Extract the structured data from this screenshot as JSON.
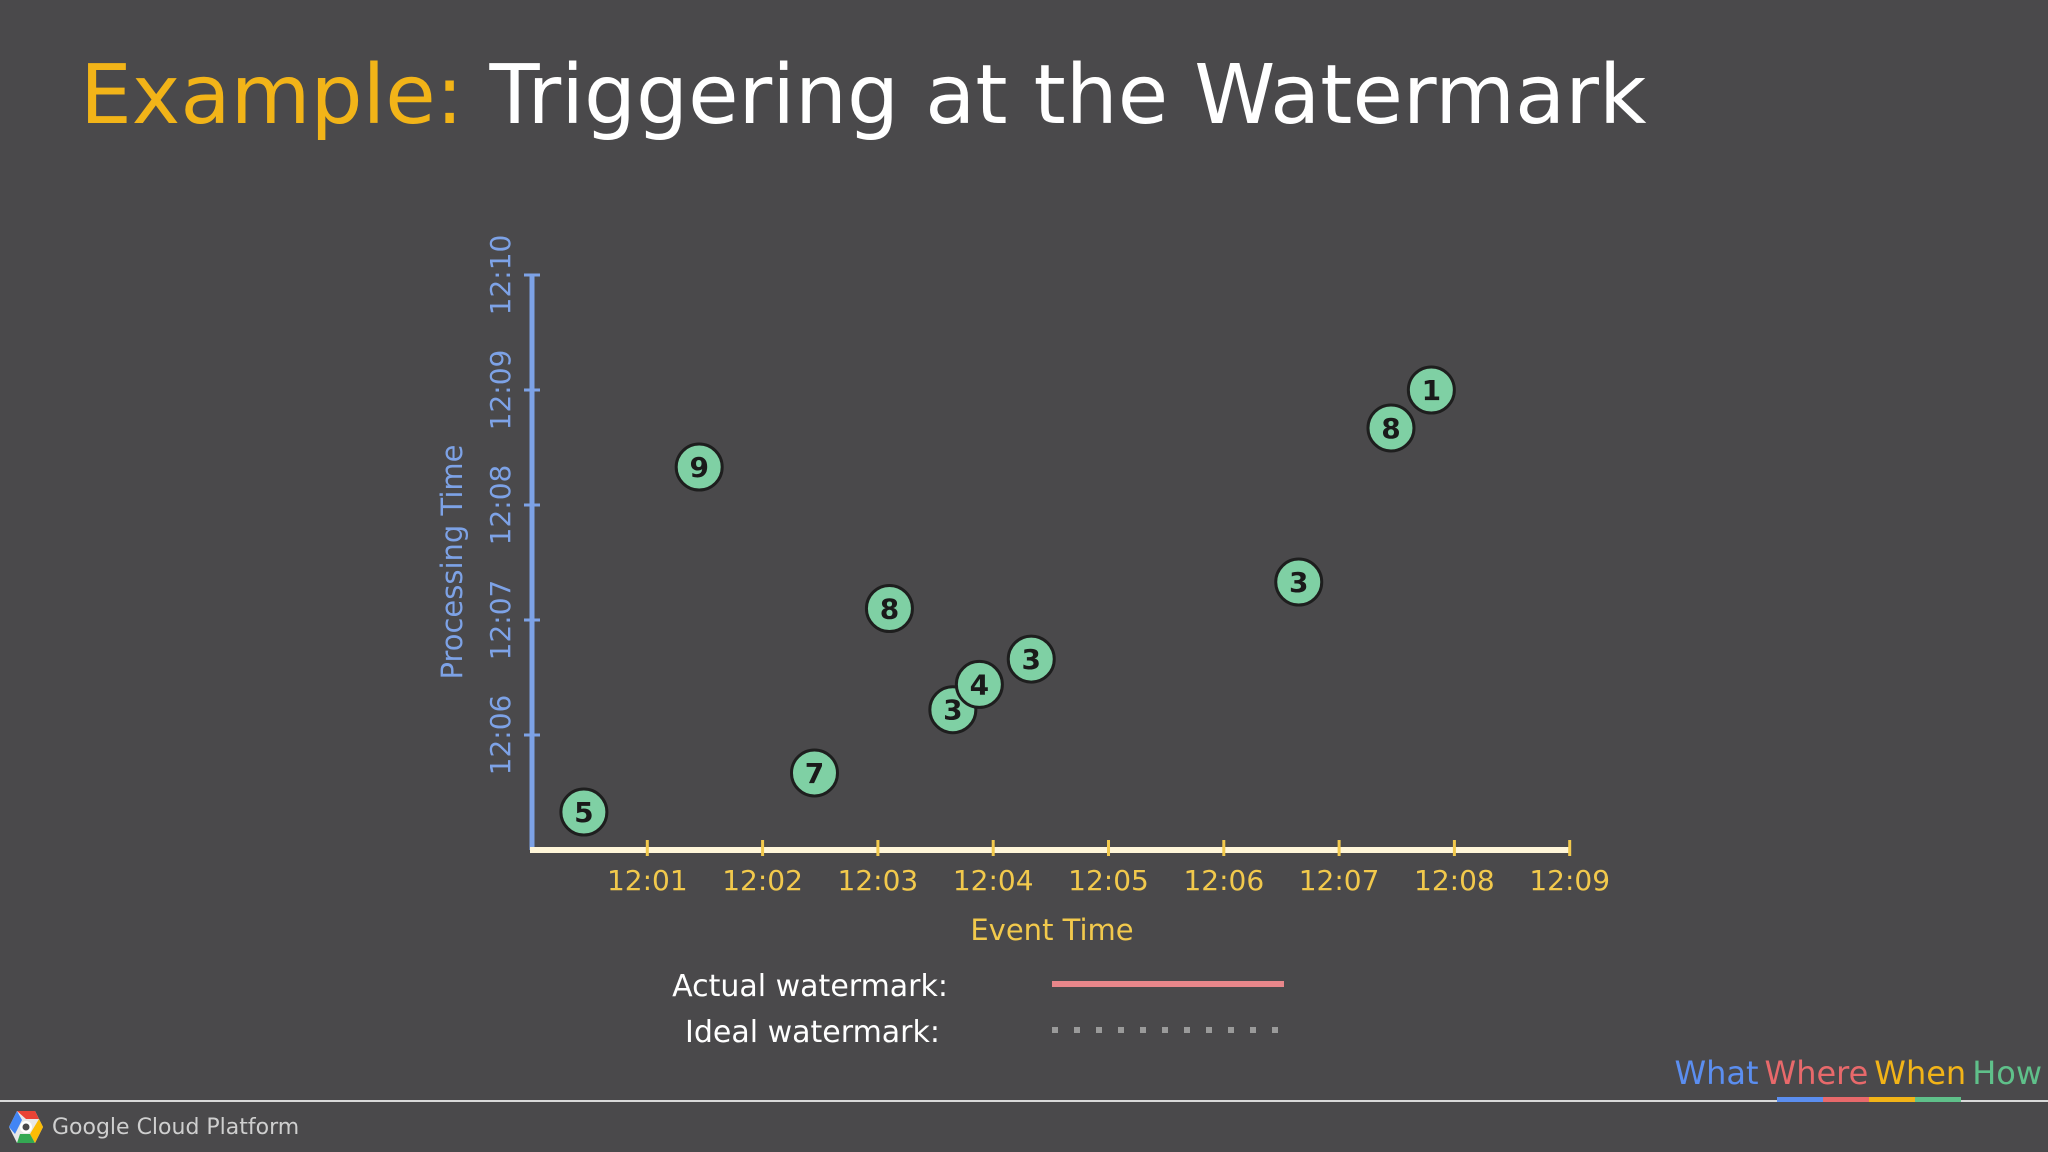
{
  "slide": {
    "title_prefix": "Example:",
    "title_rest": "Triggering at the Watermark"
  },
  "chart_data": {
    "type": "scatter",
    "xlabel": "Event Time",
    "ylabel": "Processing Time",
    "x_ticks": [
      "12:01",
      "12:02",
      "12:03",
      "12:04",
      "12:05",
      "12:06",
      "12:07",
      "12:08",
      "12:09"
    ],
    "y_ticks": [
      "12:06",
      "12:07",
      "12:08",
      "12:09",
      "12:10"
    ],
    "xlim_minutes": [
      0,
      9
    ],
    "ylim_minutes": [
      5,
      10
    ],
    "points": [
      {
        "label": "5",
        "event_min": 0.45,
        "proc_min": 5.33
      },
      {
        "label": "9",
        "event_min": 1.45,
        "proc_min": 8.33
      },
      {
        "label": "7",
        "event_min": 2.45,
        "proc_min": 5.67
      },
      {
        "label": "8",
        "event_min": 3.1,
        "proc_min": 7.1
      },
      {
        "label": "3",
        "event_min": 3.65,
        "proc_min": 6.22
      },
      {
        "label": "4",
        "event_min": 3.88,
        "proc_min": 6.44
      },
      {
        "label": "3",
        "event_min": 4.33,
        "proc_min": 6.66
      },
      {
        "label": "3",
        "event_min": 6.65,
        "proc_min": 7.33
      },
      {
        "label": "8",
        "event_min": 7.45,
        "proc_min": 8.67
      },
      {
        "label": "1",
        "event_min": 7.8,
        "proc_min": 9.0
      }
    ],
    "legend": [
      {
        "label": "Actual watermark:",
        "style": "solid",
        "color": "#e8868a"
      },
      {
        "label": "Ideal watermark:",
        "style": "dotted",
        "color": "#9a9a9a"
      }
    ]
  },
  "colors": {
    "background": "#4a494b",
    "title_accent": "#f2b418",
    "y_axis": "#7da2e6",
    "x_axis": "#f2c94c",
    "point_fill": "#7fd0a4"
  },
  "footer": {
    "brand": "Google Cloud Platform",
    "brand_icon": "google-cloud-hexagon-icon",
    "nav": [
      {
        "label": "What",
        "color": "#5b8ef0"
      },
      {
        "label": "Where",
        "color": "#e8696b"
      },
      {
        "label": "When",
        "color": "#f2b418"
      },
      {
        "label": "How",
        "color": "#5fc08a"
      }
    ]
  }
}
